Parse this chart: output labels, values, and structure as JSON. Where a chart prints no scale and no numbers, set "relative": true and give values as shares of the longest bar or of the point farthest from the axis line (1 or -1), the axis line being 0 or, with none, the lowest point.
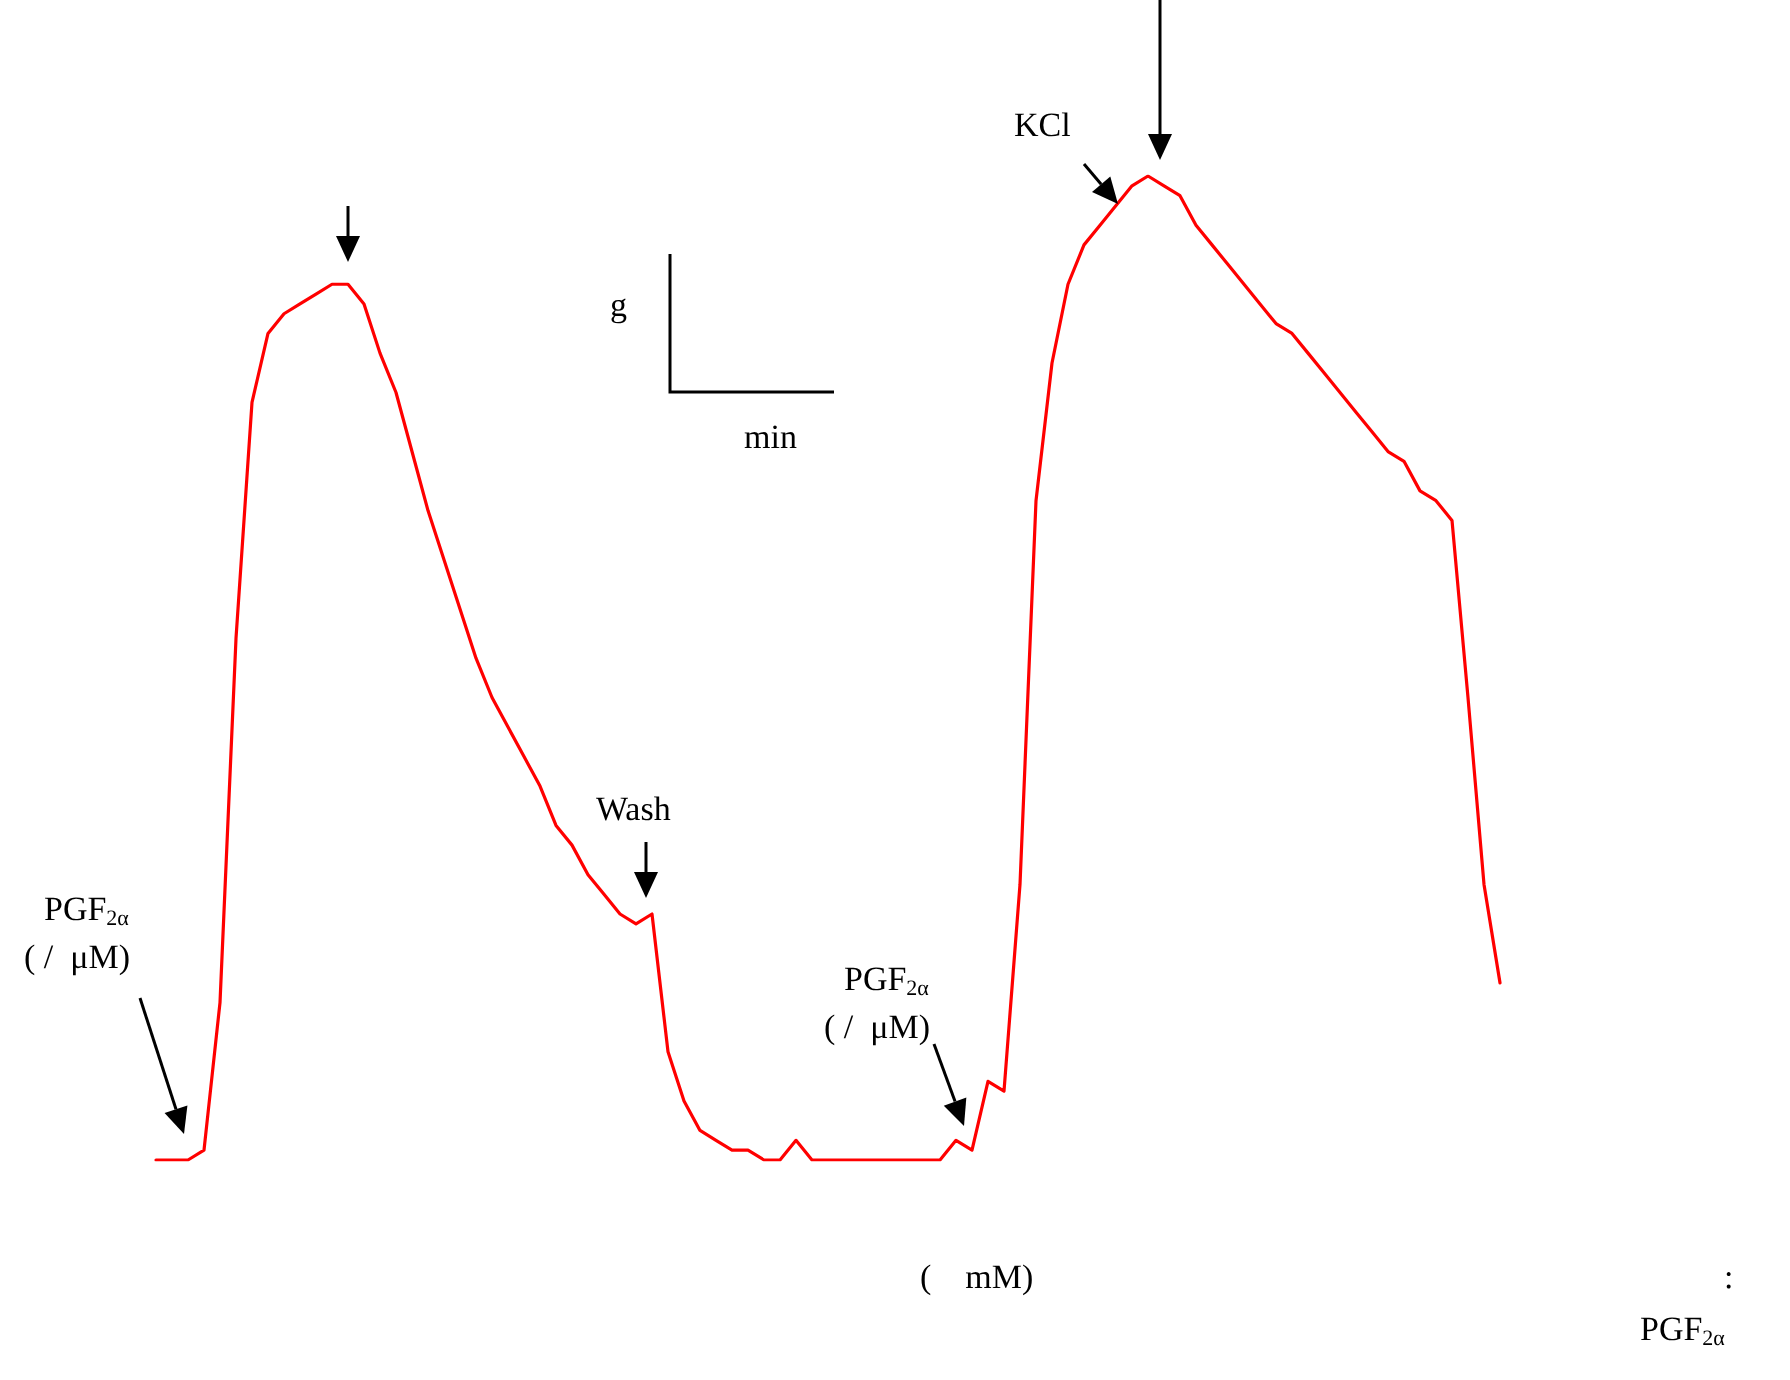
{
  "chart_data": {
    "type": "line",
    "relative": true,
    "categories": [
      null,
      null,
      null,
      null,
      null,
      null,
      null,
      null,
      null,
      null,
      null,
      null,
      null,
      null,
      null,
      null,
      null,
      null,
      null,
      null,
      null,
      null,
      null,
      null,
      null,
      null,
      null,
      null,
      null,
      null,
      null,
      null,
      null,
      null,
      null,
      null,
      null,
      null,
      null,
      null,
      null,
      null,
      null,
      null,
      null,
      null,
      null,
      null,
      null,
      null,
      null,
      null,
      null,
      null,
      null,
      null,
      null,
      null,
      null,
      null,
      null,
      null,
      null,
      null,
      null,
      null,
      null,
      null,
      null,
      null,
      null,
      null,
      null,
      null,
      null,
      null,
      null,
      null,
      null,
      null,
      null,
      null,
      null,
      null,
      null
    ],
    "series": [
      {
        "color": "#ff0000",
        "values": [
          0,
          0,
          0,
          0.01,
          0.16,
          0.53,
          0.77,
          0.84,
          0.86,
          0.87,
          0.88,
          0.89,
          0.89,
          0.87,
          0.82,
          0.78,
          0.72,
          0.66,
          0.61,
          0.56,
          0.51,
          0.47,
          0.44,
          0.41,
          0.38,
          0.34,
          0.32,
          0.29,
          0.27,
          0.25,
          0.24,
          0.25,
          0.11,
          0.06,
          0.03,
          0.02,
          0.01,
          0.01,
          0,
          0,
          0.02,
          0,
          0,
          0,
          0,
          0,
          0,
          0,
          0,
          0,
          0.02,
          0.01,
          0.08,
          0.07,
          0.28,
          0.67,
          0.81,
          0.89,
          0.93,
          0.95,
          0.97,
          0.99,
          1,
          0.99,
          0.98,
          0.95,
          0.93,
          0.91,
          0.89,
          0.87,
          0.85,
          0.84,
          0.82,
          0.8,
          0.78,
          0.76,
          0.74,
          0.72,
          0.71,
          0.68,
          0.67,
          0.65,
          0.47,
          0.28,
          0.18
        ]
      }
    ],
    "annotations": [
      "PGF$_{2α}$",
      "( /  μM)",
      "Wash",
      "PGF$_{2α}$",
      "( /  μM)",
      "KCl",
      "g",
      "min",
      "(    mM)",
      ":",
      "PGF$_{2α}$"
    ],
    "marker": "none",
    "line_style": "solid"
  }
}
